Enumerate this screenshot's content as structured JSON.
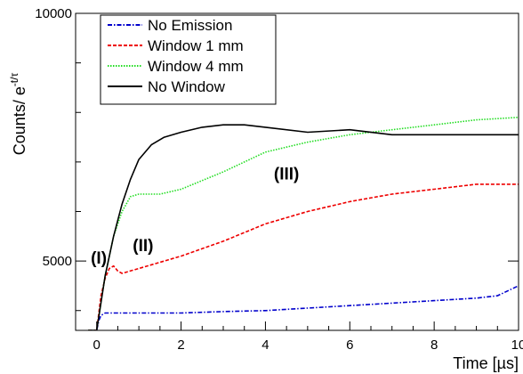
{
  "chart_data": {
    "type": "line",
    "xlabel": "Time [µs]",
    "ylabel_main": "Counts/ e",
    "ylabel_exp": "-t/τ",
    "xlim": [
      -0.5,
      10
    ],
    "ylim": [
      3600,
      10000
    ],
    "xticks": [
      0,
      2,
      4,
      6,
      8,
      10
    ],
    "xtick_labels": [
      "0",
      "2",
      "4",
      "6",
      "8",
      "10"
    ],
    "yticks": [
      5000,
      10000
    ],
    "ytick_labels": [
      "5000",
      "10000"
    ],
    "grid": false,
    "legend_position": "top-left",
    "annotations": [
      {
        "text": "(I)",
        "x": 0.05,
        "y": 4950
      },
      {
        "text": "(II)",
        "x": 1.1,
        "y": 5200
      },
      {
        "text": "(III)",
        "x": 4.5,
        "y": 6650
      }
    ],
    "series": [
      {
        "name": "No Emission",
        "color": "#0000cc",
        "style": "dashdot",
        "x": [
          -0.2,
          0,
          0.05,
          0.1,
          0.2,
          0.5,
          1,
          2,
          3,
          4,
          5,
          6,
          7,
          8,
          9,
          9.5,
          10
        ],
        "y": [
          3600,
          3600,
          3800,
          3900,
          3950,
          3950,
          3950,
          3950,
          3980,
          4000,
          4050,
          4100,
          4150,
          4200,
          4250,
          4300,
          4500
        ]
      },
      {
        "name": "Window 1 mm",
        "color": "#ee0000",
        "style": "dashed",
        "x": [
          -0.2,
          0,
          0.1,
          0.2,
          0.3,
          0.4,
          0.5,
          0.6,
          1,
          2,
          3,
          4,
          5,
          6,
          7,
          8,
          9,
          9.5,
          10
        ],
        "y": [
          3600,
          3600,
          4300,
          4650,
          4850,
          4900,
          4800,
          4750,
          4850,
          5100,
          5400,
          5750,
          6000,
          6200,
          6350,
          6450,
          6550,
          6550,
          6550
        ]
      },
      {
        "name": "Window 4 mm",
        "color": "#22dd22",
        "style": "dotted",
        "x": [
          -0.2,
          0,
          0.2,
          0.4,
          0.6,
          0.8,
          1,
          1.5,
          2,
          3,
          4,
          5,
          6,
          7,
          8,
          9,
          10
        ],
        "y": [
          3600,
          3600,
          4700,
          5500,
          6000,
          6300,
          6350,
          6350,
          6450,
          6800,
          7200,
          7400,
          7550,
          7650,
          7750,
          7850,
          7900
        ]
      },
      {
        "name": "No Window",
        "color": "#000000",
        "style": "solid",
        "x": [
          -0.2,
          0,
          0.2,
          0.4,
          0.6,
          0.8,
          1,
          1.3,
          1.6,
          2,
          2.5,
          3,
          3.5,
          4,
          5,
          6,
          7,
          8,
          9,
          10
        ],
        "y": [
          3600,
          3600,
          4700,
          5500,
          6150,
          6650,
          7050,
          7350,
          7500,
          7600,
          7700,
          7750,
          7750,
          7700,
          7600,
          7650,
          7550,
          7550,
          7550,
          7550
        ]
      }
    ]
  }
}
